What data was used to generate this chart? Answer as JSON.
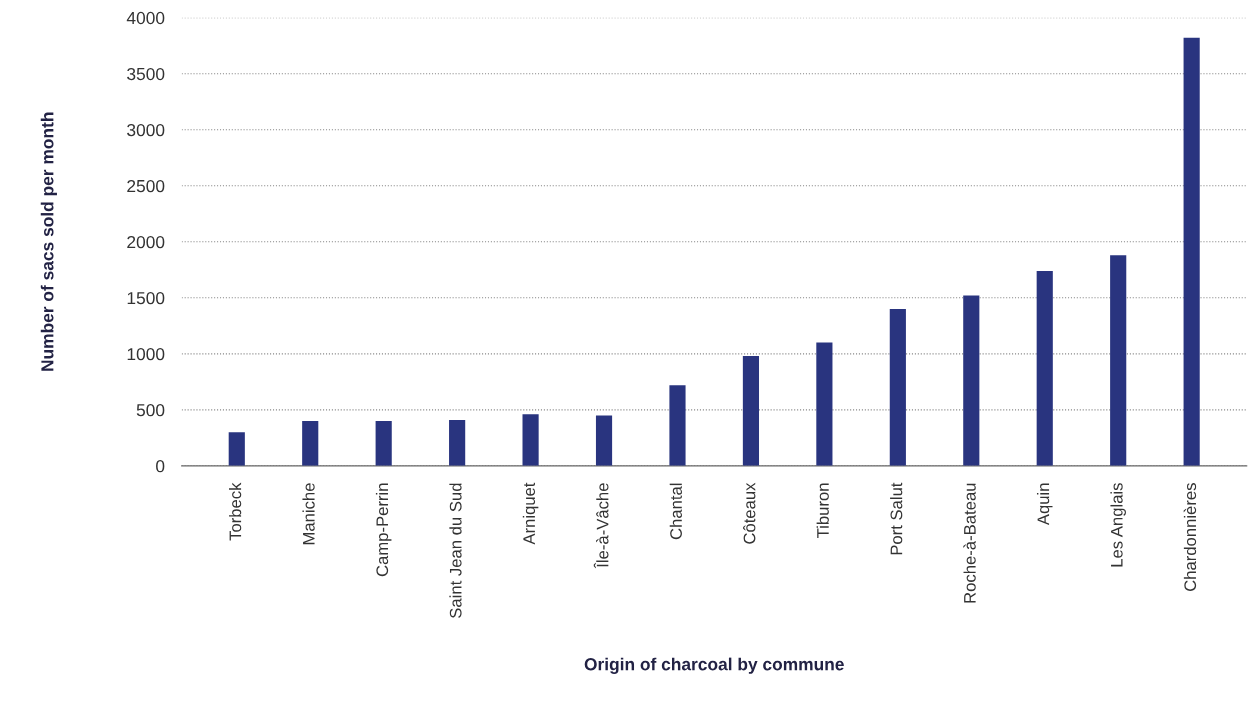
{
  "chart_data": {
    "type": "bar",
    "xlabel": "Origin of charcoal by commune",
    "ylabel": "Number of sacs sold per month",
    "categories": [
      "Torbeck",
      "Maniche",
      "Camp-Perrin",
      "Saint Jean du Sud",
      "Arniquet",
      "Île-à-Vâche",
      "Chantal",
      "Côteaux",
      "Tiburon",
      "Port Salut",
      "Roche-à-Bateau",
      "Aquin",
      "Les Anglais",
      "Chardonnières"
    ],
    "values": [
      300,
      400,
      400,
      410,
      460,
      450,
      720,
      980,
      1100,
      1400,
      1520,
      1740,
      1880,
      3820
    ],
    "color": "#29347f",
    "ylim": [
      0,
      4000
    ],
    "yticks": [
      0,
      500,
      1000,
      1500,
      2000,
      2500,
      3000,
      3500,
      4000
    ],
    "grid": "y",
    "legend": false
  }
}
